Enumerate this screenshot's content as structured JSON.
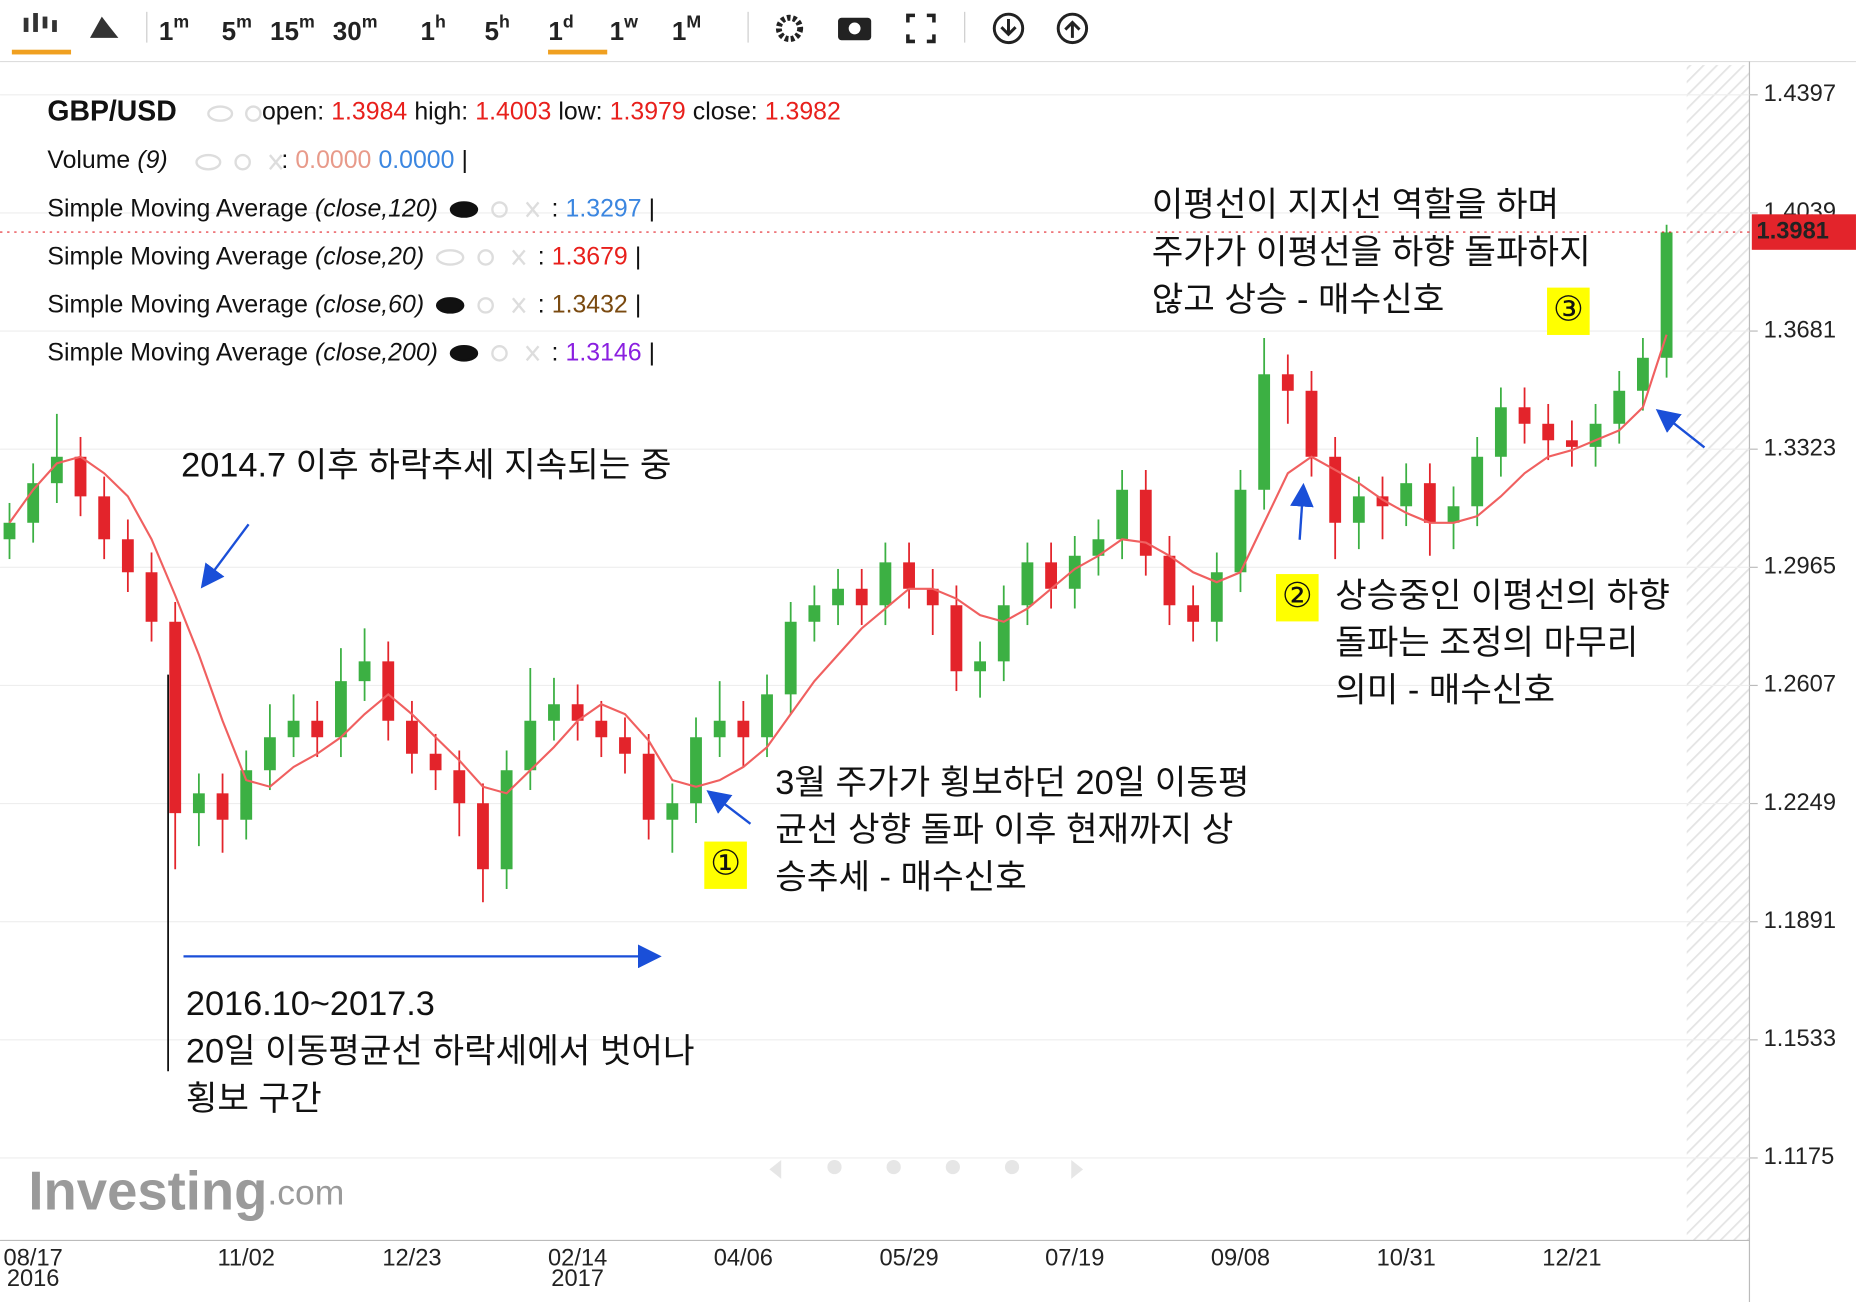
{
  "toolbar": {
    "intervals": [
      {
        "num": "1",
        "unit": "m"
      },
      {
        "num": "5",
        "unit": "m"
      },
      {
        "num": "15",
        "unit": "m"
      },
      {
        "num": "30",
        "unit": "m"
      },
      {
        "num": "1",
        "unit": "h"
      },
      {
        "num": "5",
        "unit": "h"
      },
      {
        "num": "1",
        "unit": "d"
      },
      {
        "num": "1",
        "unit": "w"
      },
      {
        "num": "1",
        "unit": "M"
      }
    ]
  },
  "legend": {
    "symbol": "GBP/USD",
    "ohlc": [
      {
        "label": "open:",
        "value": "1.3984"
      },
      {
        "label": "high:",
        "value": "1.4003"
      },
      {
        "label": "low:",
        "value": "1.3979"
      },
      {
        "label": "close:",
        "value": "1.3982"
      }
    ],
    "volume": {
      "name": "Volume",
      "params": "(9)",
      "sep": ":",
      "values": [
        "0.0000",
        "0.0000"
      ],
      "end": "|"
    },
    "indicators": [
      {
        "name": "Simple Moving Average",
        "params": "(close,120)",
        "sep": ":",
        "value": "1.3297",
        "color": "#3b86e0",
        "end": "|"
      },
      {
        "name": "Simple Moving Average",
        "params": "(close,20)",
        "sep": ":",
        "value": "1.3679",
        "color": "#e8201c",
        "end": "|"
      },
      {
        "name": "Simple Moving Average",
        "params": "(close,60)",
        "sep": ":",
        "value": "1.3432",
        "color": "#7a4a10",
        "end": "|"
      },
      {
        "name": "Simple Moving Average",
        "params": "(close,200)",
        "sep": ":",
        "value": "1.3146",
        "color": "#8a1fe0",
        "end": "|"
      }
    ]
  },
  "watermark": {
    "brand": "Investing",
    "suffix": ".com"
  },
  "chart_data": {
    "type": "candlestick",
    "categories": [
      null,
      "08/17",
      null,
      null,
      null,
      null,
      null,
      null,
      null,
      null,
      "11/02",
      null,
      null,
      null,
      null,
      null,
      null,
      "12/23",
      null,
      null,
      null,
      null,
      null,
      null,
      "02/14",
      null,
      null,
      null,
      null,
      null,
      null,
      "04/06",
      null,
      null,
      null,
      null,
      null,
      null,
      "05/29",
      null,
      null,
      null,
      null,
      null,
      null,
      "07/19",
      null,
      null,
      null,
      null,
      null,
      null,
      "09/08",
      null,
      null,
      null,
      null,
      null,
      null,
      "10/31",
      null,
      null,
      null,
      null,
      null,
      null,
      "12/21",
      null,
      null,
      null,
      null
    ],
    "category_years": [
      null,
      "2016",
      null,
      null,
      null,
      null,
      null,
      null,
      null,
      null,
      null,
      null,
      null,
      null,
      null,
      null,
      null,
      null,
      null,
      null,
      null,
      null,
      null,
      null,
      "2017",
      null,
      null,
      null,
      null,
      null,
      null,
      null,
      null,
      null,
      null,
      null,
      null,
      null,
      null,
      null,
      null,
      null,
      null,
      null,
      null,
      null,
      null,
      null,
      null,
      null,
      null,
      null,
      null,
      null,
      null,
      null,
      null,
      null,
      null,
      null,
      null,
      null,
      null,
      null,
      null,
      null,
      null,
      null,
      null,
      null,
      null
    ],
    "open": [
      1.305,
      1.31,
      1.322,
      1.33,
      1.318,
      1.305,
      1.295,
      1.28,
      1.222,
      1.228,
      1.22,
      1.235,
      1.245,
      1.25,
      1.245,
      1.262,
      1.268,
      1.25,
      1.24,
      1.235,
      1.225,
      1.205,
      1.235,
      1.25,
      1.255,
      1.25,
      1.245,
      1.24,
      1.22,
      1.225,
      1.245,
      1.25,
      1.245,
      1.258,
      1.28,
      1.285,
      1.29,
      1.285,
      1.298,
      1.29,
      1.285,
      1.265,
      1.268,
      1.285,
      1.298,
      1.29,
      1.3,
      1.305,
      1.32,
      1.3,
      1.285,
      1.28,
      1.295,
      1.32,
      1.355,
      1.35,
      1.33,
      1.31,
      1.318,
      1.315,
      1.322,
      1.31,
      1.315,
      1.33,
      1.345,
      1.34,
      1.335,
      1.333,
      1.34,
      1.35,
      1.36
    ],
    "high": [
      1.316,
      1.328,
      1.343,
      1.336,
      1.324,
      1.311,
      1.301,
      1.286,
      1.234,
      1.234,
      1.241,
      1.255,
      1.258,
      1.256,
      1.272,
      1.278,
      1.274,
      1.256,
      1.246,
      1.241,
      1.231,
      1.241,
      1.266,
      1.263,
      1.261,
      1.256,
      1.251,
      1.246,
      1.231,
      1.251,
      1.262,
      1.256,
      1.264,
      1.286,
      1.291,
      1.296,
      1.296,
      1.304,
      1.304,
      1.296,
      1.291,
      1.274,
      1.291,
      1.304,
      1.304,
      1.306,
      1.311,
      1.326,
      1.326,
      1.306,
      1.291,
      1.301,
      1.326,
      1.366,
      1.361,
      1.356,
      1.336,
      1.324,
      1.324,
      1.328,
      1.328,
      1.321,
      1.336,
      1.351,
      1.351,
      1.346,
      1.341,
      1.346,
      1.356,
      1.366,
      1.4003
    ],
    "low": [
      1.299,
      1.304,
      1.316,
      1.312,
      1.299,
      1.289,
      1.274,
      1.205,
      1.212,
      1.21,
      1.214,
      1.229,
      1.239,
      1.239,
      1.239,
      1.256,
      1.244,
      1.234,
      1.229,
      1.215,
      1.195,
      1.199,
      1.229,
      1.244,
      1.244,
      1.239,
      1.234,
      1.214,
      1.21,
      1.219,
      1.239,
      1.236,
      1.239,
      1.252,
      1.274,
      1.279,
      1.279,
      1.279,
      1.284,
      1.276,
      1.259,
      1.257,
      1.262,
      1.279,
      1.284,
      1.284,
      1.294,
      1.299,
      1.294,
      1.279,
      1.274,
      1.274,
      1.289,
      1.314,
      1.34,
      1.324,
      1.299,
      1.302,
      1.305,
      1.309,
      1.3,
      1.302,
      1.309,
      1.324,
      1.334,
      1.329,
      1.327,
      1.327,
      1.334,
      1.344,
      1.354
    ],
    "close": [
      1.31,
      1.322,
      1.33,
      1.318,
      1.305,
      1.295,
      1.28,
      1.222,
      1.228,
      1.22,
      1.235,
      1.245,
      1.25,
      1.245,
      1.262,
      1.268,
      1.25,
      1.24,
      1.235,
      1.225,
      1.205,
      1.235,
      1.25,
      1.255,
      1.25,
      1.245,
      1.24,
      1.22,
      1.225,
      1.245,
      1.25,
      1.245,
      1.258,
      1.28,
      1.285,
      1.29,
      1.285,
      1.298,
      1.29,
      1.285,
      1.265,
      1.268,
      1.285,
      1.298,
      1.29,
      1.3,
      1.305,
      1.32,
      1.3,
      1.285,
      1.28,
      1.295,
      1.32,
      1.355,
      1.35,
      1.33,
      1.31,
      1.318,
      1.315,
      1.322,
      1.31,
      1.315,
      1.33,
      1.345,
      1.34,
      1.335,
      1.333,
      1.34,
      1.35,
      1.36,
      1.398
    ],
    "up_color": "#3cb043",
    "down_color": "#e3242b",
    "series": [
      {
        "name": "Simple Moving Average (close,20)",
        "color": "#f06060",
        "values": [
          1.31,
          1.32,
          1.328,
          1.33,
          1.325,
          1.318,
          1.305,
          1.288,
          1.27,
          1.25,
          1.232,
          1.23,
          1.236,
          1.24,
          1.245,
          1.252,
          1.258,
          1.252,
          1.245,
          1.238,
          1.23,
          1.228,
          1.235,
          1.242,
          1.25,
          1.255,
          1.252,
          1.244,
          1.232,
          1.23,
          1.232,
          1.236,
          1.242,
          1.252,
          1.262,
          1.27,
          1.278,
          1.284,
          1.29,
          1.29,
          1.287,
          1.282,
          1.28,
          1.284,
          1.29,
          1.296,
          1.3,
          1.305,
          1.304,
          1.3,
          1.295,
          1.292,
          1.295,
          1.31,
          1.325,
          1.33,
          1.326,
          1.322,
          1.317,
          1.313,
          1.31,
          1.31,
          1.312,
          1.318,
          1.325,
          1.33,
          1.332,
          1.335,
          1.338,
          1.345,
          1.367
        ]
      }
    ],
    "last_price": 1.3981,
    "ylim": [
      1.0925,
      1.4487
    ],
    "yticks": [
      1.4397,
      1.4039,
      1.3681,
      1.3323,
      1.2965,
      1.2607,
      1.2249,
      1.1891,
      1.1533,
      1.1175
    ],
    "grid": true,
    "annotations": [
      {
        "lines": [
          "2014.7 이후 하락추세 지속되는 중"
        ]
      },
      {
        "lines": [
          "2016.10~2017.3",
          "20일 이동평균선 하락세에서 벗어나",
          "횡보 구간"
        ]
      },
      {
        "marker": "①",
        "lines": [
          "3월 주가가 횡보하던 20일 이동평",
          "균선 상향 돌파 이후 현재까지 상",
          "승추세 - 매수신호"
        ]
      },
      {
        "marker": "②",
        "lines": [
          "상승중인 이평선의 하향",
          "돌파는 조정의 마무리",
          "의미 - 매수신호"
        ]
      },
      {
        "marker": "③",
        "lines": [
          "이평선이 지지선 역할을 하며",
          "주가가 이평선을 하향 돌파하지",
          "않고 상승 - 매수신호"
        ]
      }
    ]
  }
}
